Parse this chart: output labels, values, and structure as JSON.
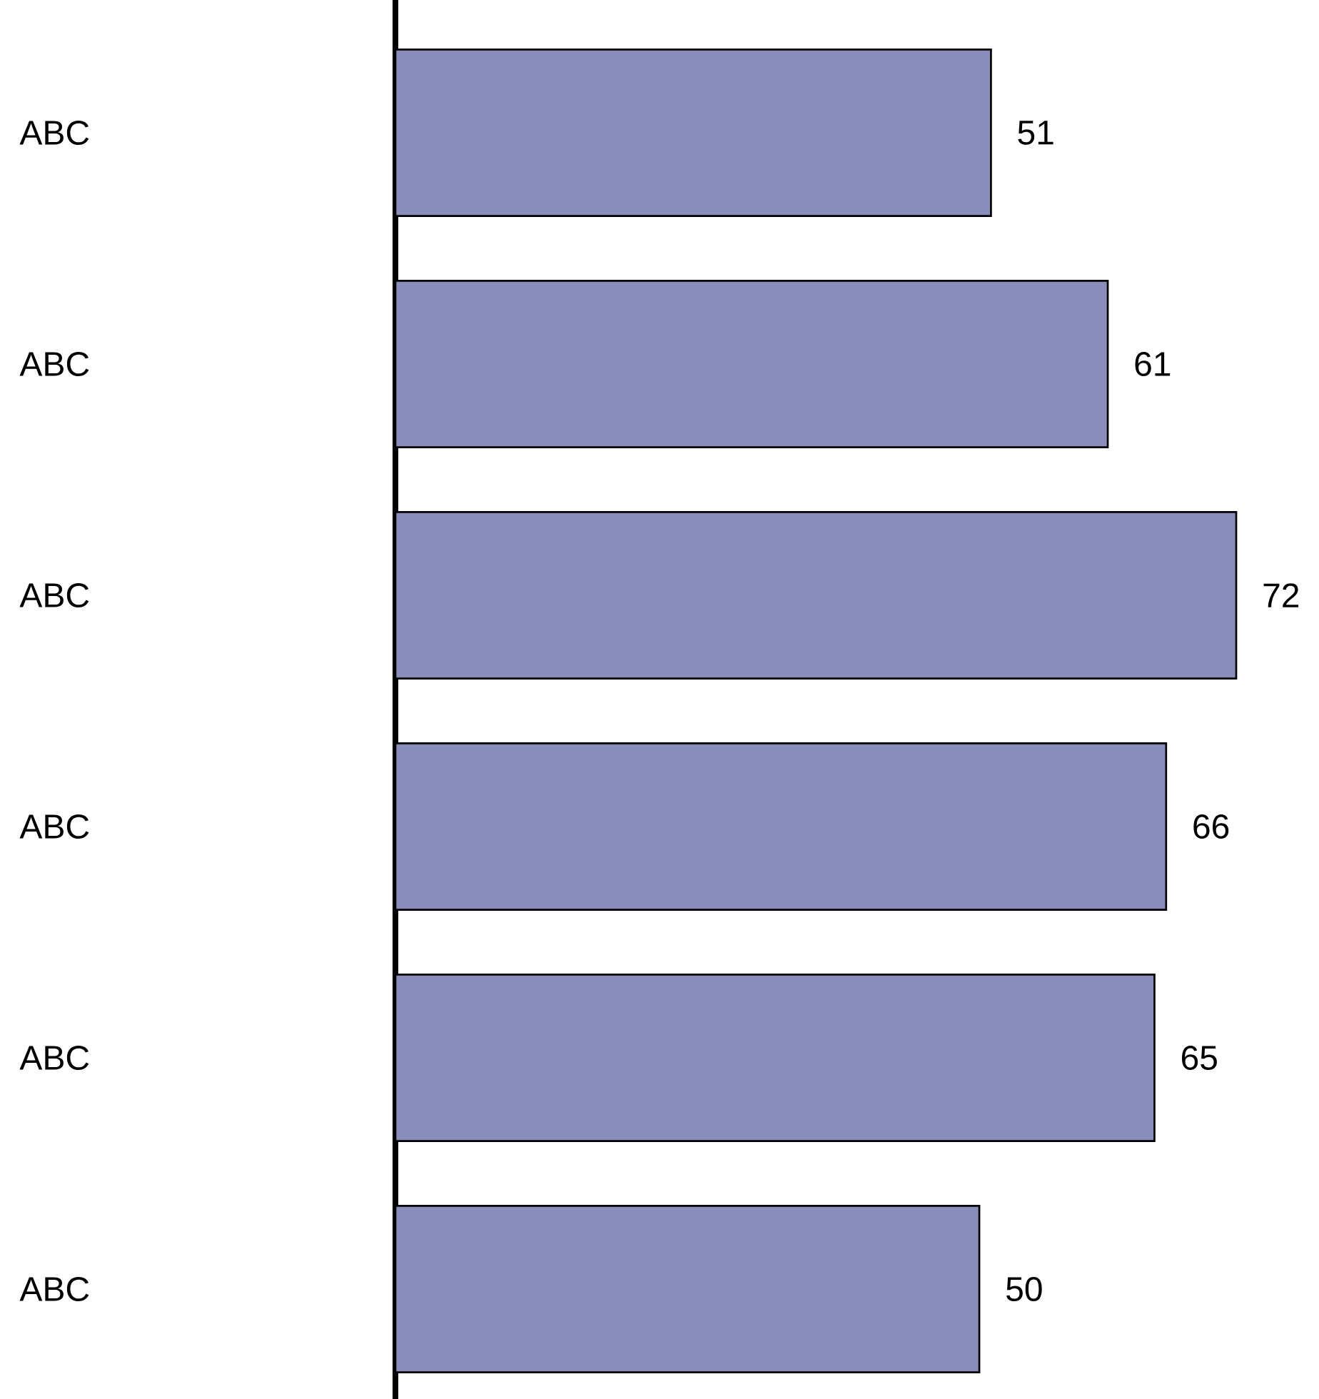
{
  "chart_data": {
    "type": "bar",
    "orientation": "horizontal",
    "categories": [
      "ABC",
      "ABC",
      "ABC",
      "ABC",
      "ABC",
      "ABC"
    ],
    "values": [
      51,
      61,
      72,
      66,
      65,
      50
    ],
    "color": "#8a8dba",
    "data_labels": true
  }
}
